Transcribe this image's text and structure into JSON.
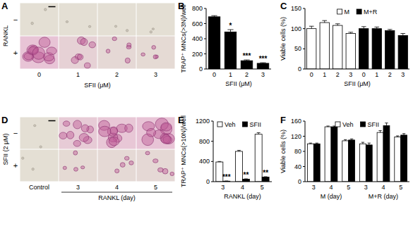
{
  "chart_data": [
    {
      "type": "bar",
      "title": "B",
      "categories": [
        "0",
        "1",
        "2",
        "3"
      ],
      "xlabel": "SFII (μM)",
      "ylabel": "TRAP⁺ MNCs(>3N)/well",
      "ylim": [
        0,
        800
      ],
      "yticks": [
        0,
        200,
        400,
        600,
        800
      ],
      "grid": false,
      "series": [
        {
          "color": "#000000",
          "values": [
            690,
            490,
            110,
            75
          ],
          "errors": [
            15,
            30,
            10,
            8
          ],
          "annotations": [
            null,
            "*",
            "***",
            "***"
          ]
        }
      ]
    },
    {
      "type": "bar",
      "title": "C",
      "categories": [
        "0",
        "1",
        "2",
        "3",
        "0",
        "1",
        "2",
        "3"
      ],
      "xlabel": "SFII (μM)",
      "ylabel": "Viable cells (%)",
      "ylim": [
        0,
        150
      ],
      "yticks": [
        0,
        50,
        100,
        150
      ],
      "grid": false,
      "legend": "top",
      "series": [
        {
          "name": "M",
          "color": "#ffffff",
          "values": [
            100,
            115,
            108,
            88,
            null,
            null,
            null,
            null
          ],
          "errors": [
            6,
            5,
            4,
            3,
            null,
            null,
            null,
            null
          ]
        },
        {
          "name": "M+R",
          "color": "#000000",
          "values": [
            null,
            null,
            null,
            null,
            100,
            100,
            95,
            83
          ],
          "errors": [
            null,
            null,
            null,
            null,
            5,
            4,
            3,
            5
          ]
        }
      ]
    },
    {
      "type": "bar",
      "title": "E",
      "categories": [
        "3",
        "4",
        "5"
      ],
      "xlabel": "RANKL (day)",
      "ylabel": "TRAP⁺ MNCs(>10N)/well",
      "ylim": [
        0,
        1200
      ],
      "yticks": [
        0,
        400,
        800,
        1200
      ],
      "grid": false,
      "legend": "top-left",
      "series": [
        {
          "name": "Veh",
          "color": "#ffffff",
          "values": [
            390,
            600,
            940
          ],
          "errors": [
            10,
            20,
            30
          ]
        },
        {
          "name": "SFII",
          "color": "#000000",
          "values": [
            10,
            50,
            90
          ],
          "errors": [
            3,
            6,
            8
          ],
          "annotations": [
            "***",
            "**",
            "**"
          ]
        }
      ]
    },
    {
      "type": "bar",
      "title": "F",
      "categories": [
        "3",
        "4",
        "5",
        "3",
        "4",
        "5"
      ],
      "x_group_labels": [
        "M (day)",
        "M+R (day)"
      ],
      "ylabel": "Viable cells (%)",
      "ylim": [
        0,
        160
      ],
      "yticks": [
        0,
        40,
        80,
        120,
        160
      ],
      "grid": false,
      "legend": "top",
      "series": [
        {
          "name": "Veh",
          "color": "#ffffff",
          "values": [
            100,
            145,
            108,
            100,
            130,
            118
          ],
          "errors": [
            2,
            2,
            3,
            4,
            5,
            3
          ]
        },
        {
          "name": "SFII",
          "color": "#000000",
          "values": [
            100,
            145,
            110,
            97,
            148,
            123
          ],
          "errors": [
            2,
            2,
            3,
            5,
            7,
            4
          ]
        }
      ]
    }
  ],
  "images": [
    {
      "title": "A",
      "row_label": "RANKL",
      "rows": [
        "−",
        "+"
      ],
      "columns": [
        "0",
        "1",
        "2",
        "3"
      ],
      "xlabel": "SFII (μM)"
    },
    {
      "title": "D",
      "row_label": "SFII (2 μM)",
      "rows": [
        "−",
        "+"
      ],
      "columns": [
        "Control",
        "3",
        "4",
        "5"
      ],
      "xlabel": "RANKL (day)"
    }
  ]
}
